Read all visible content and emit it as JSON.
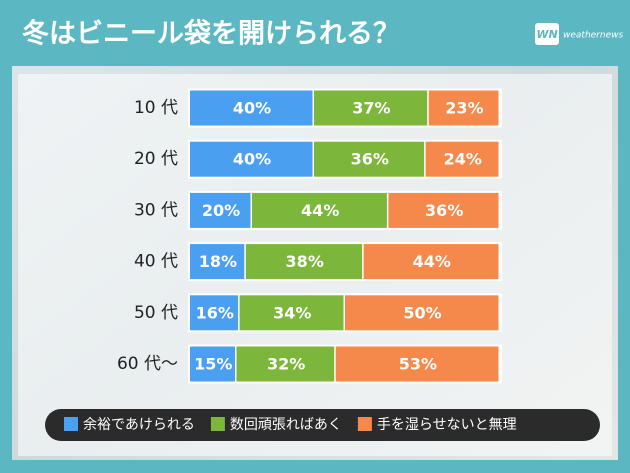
{
  "chart_data": {
    "type": "bar",
    "orientation": "horizontal",
    "stacked": true,
    "title": "冬はビニール袋を開けられる？",
    "categories": [
      "10 代",
      "20 代",
      "30 代",
      "40 代",
      "50 代",
      "60 代〜"
    ],
    "series": [
      {
        "name": "余裕であけられる",
        "color": "#4b9ff0",
        "values": [
          40,
          40,
          20,
          18,
          16,
          15
        ],
        "value_labels": [
          "40%",
          "40%",
          "20%",
          "18%",
          "16%",
          "15%"
        ]
      },
      {
        "name": "数回頑張ればあく",
        "color": "#7cb73b",
        "values": [
          37,
          36,
          44,
          38,
          34,
          32
        ],
        "value_labels": [
          "37%",
          "36%",
          "44%",
          "38%",
          "34%",
          "32%"
        ]
      },
      {
        "name": "手を湿らせないと無理",
        "color": "#f5894b",
        "values": [
          23,
          24,
          36,
          44,
          50,
          53
        ],
        "value_labels": [
          "23%",
          "24%",
          "36%",
          "44%",
          "50%",
          "53%"
        ]
      }
    ]
  },
  "logo": {
    "mark": "WN",
    "text": "weathernews"
  }
}
